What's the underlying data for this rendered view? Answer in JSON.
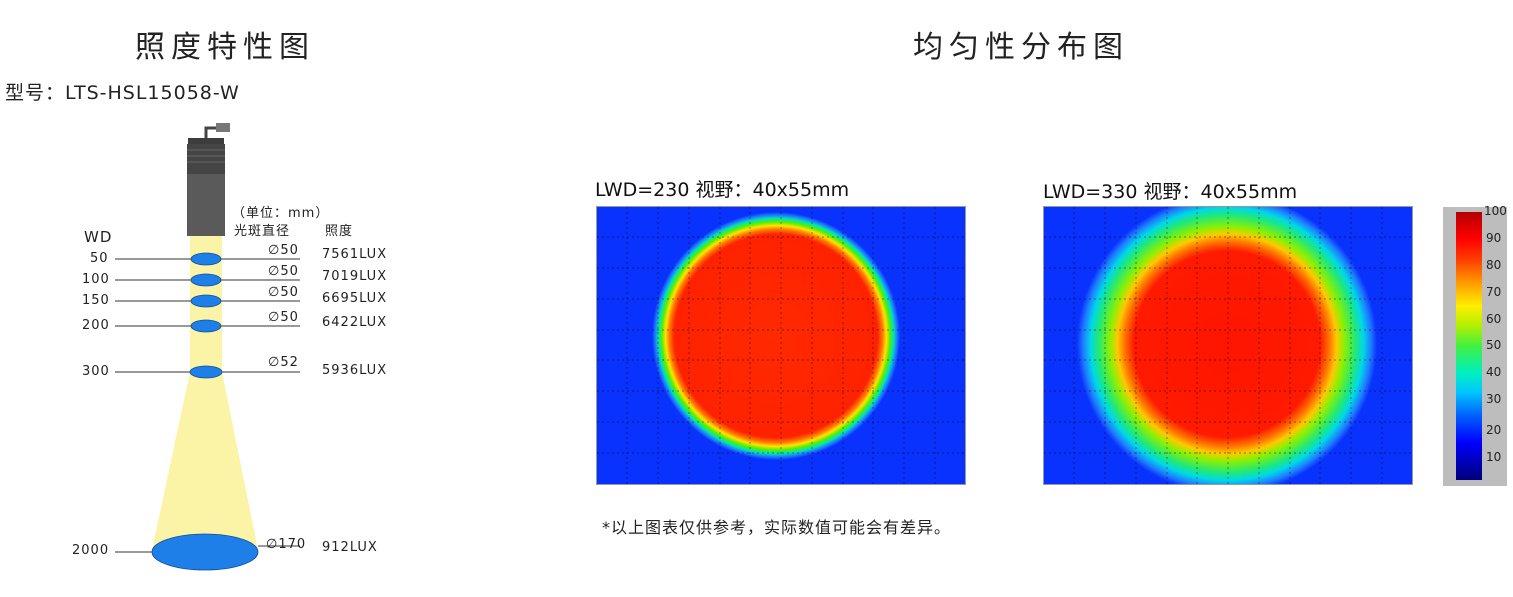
{
  "left": {
    "title": "照度特性图",
    "model": "型号：LTS-HSL15058-W",
    "unit_note": "（单位：mm）",
    "col_spot": "光斑直径",
    "col_lux": "照度",
    "wd_label": "WD",
    "rows": [
      {
        "wd": "50",
        "dia": "∅50",
        "lux": "7561LUX"
      },
      {
        "wd": "100",
        "dia": "∅50",
        "lux": "7019LUX"
      },
      {
        "wd": "150",
        "dia": "∅50",
        "lux": "6695LUX"
      },
      {
        "wd": "200",
        "dia": "∅50",
        "lux": "6422LUX"
      },
      {
        "wd": "300",
        "dia": "∅52",
        "lux": "5936LUX"
      },
      {
        "wd": "2000",
        "dia": "∅170",
        "lux": "912LUX"
      }
    ],
    "colors": {
      "beam": "#fbf3a6",
      "spot": "#1e7fe8",
      "housing": "#5a5a5a"
    }
  },
  "right": {
    "title": "均匀性分布图",
    "map1_label": "LWD=230  视野：40x55mm",
    "map2_label": "LWD=330  视野：40x55mm",
    "colorbar_ticks": [
      "100",
      "90",
      "80",
      "70",
      "60",
      "50",
      "40",
      "30",
      "20",
      "10"
    ],
    "note": "*以上图表仅供参考，实际数值可能会有差异。",
    "colors": {
      "background": "#0a32ff",
      "hot": "#ff2200"
    }
  }
}
